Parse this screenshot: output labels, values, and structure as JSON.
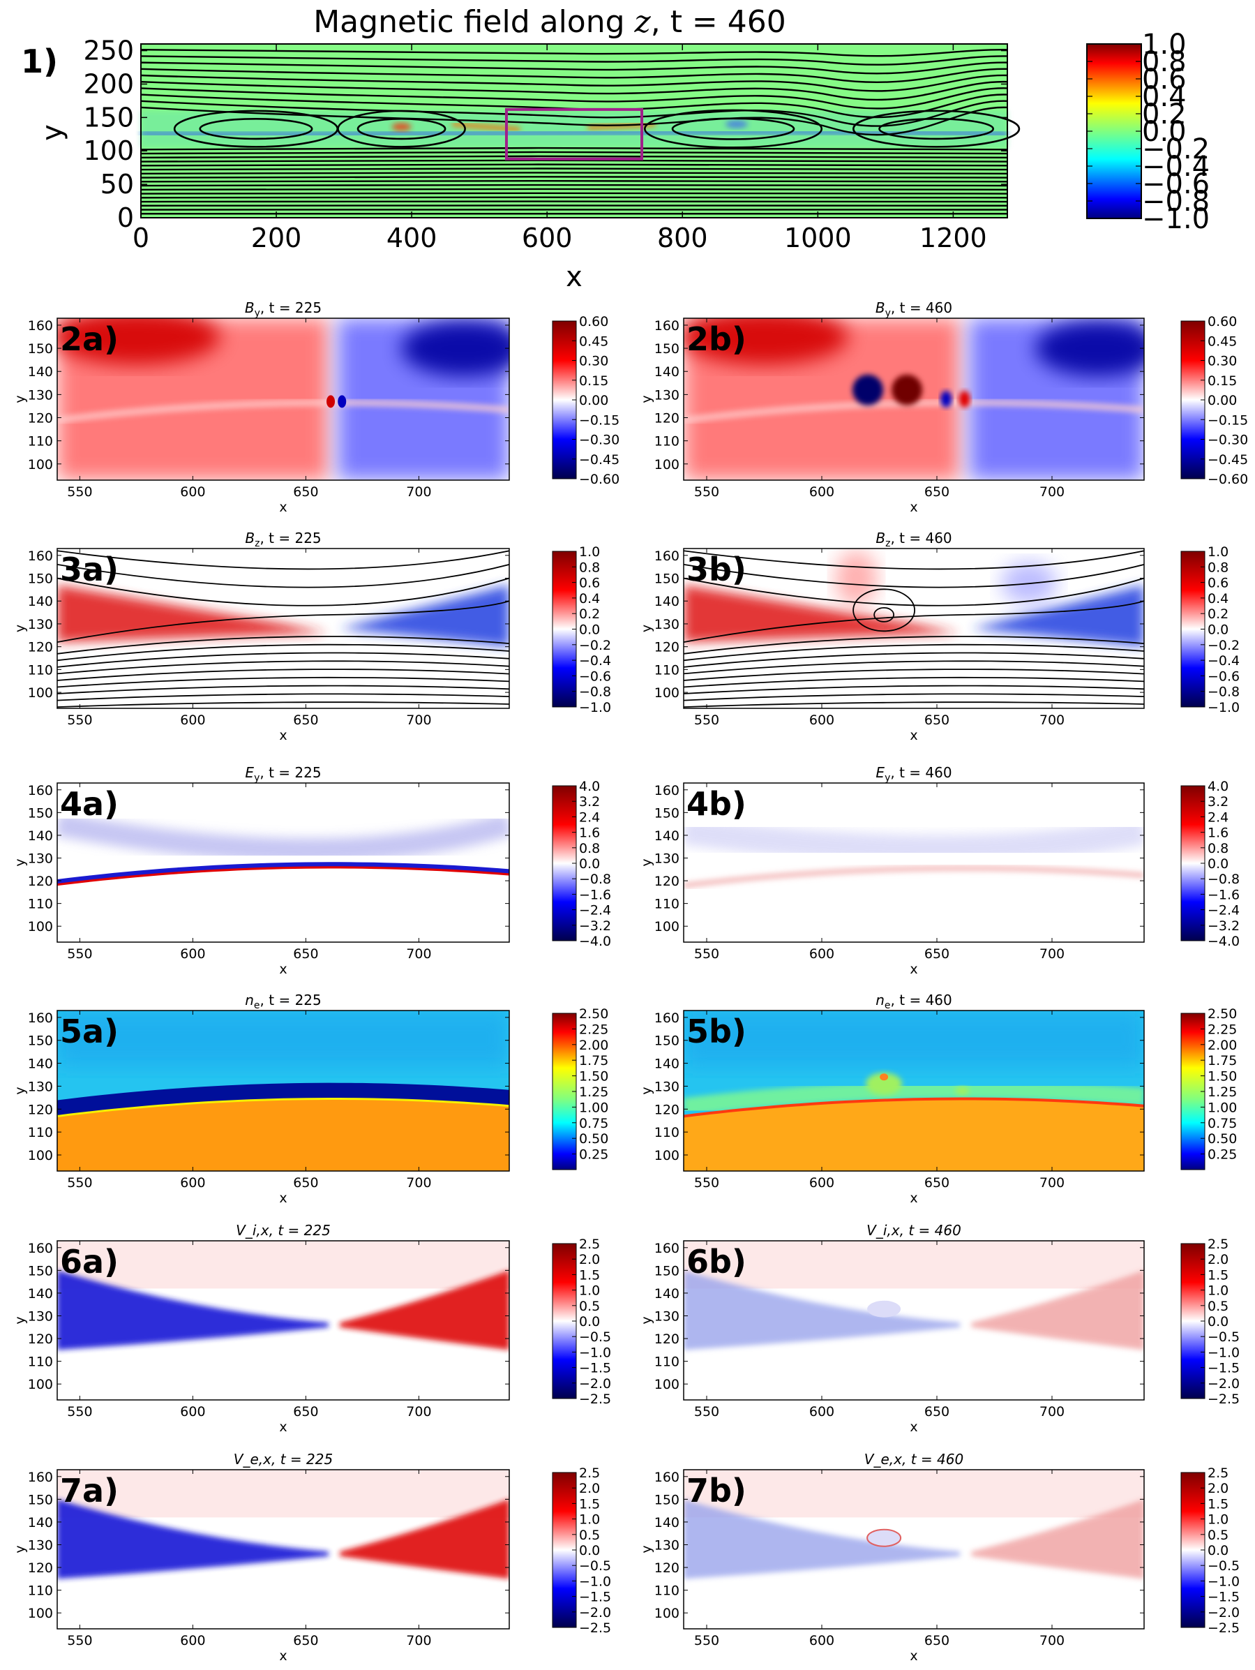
{
  "figure": {
    "panel1": {
      "id": "1)",
      "title": "Magnetic field along z, t = 460",
      "xlabel": "x",
      "ylabel": "y",
      "xlim": [
        0,
        1280
      ],
      "ylim": [
        0,
        260
      ],
      "xticks": [
        "0",
        "200",
        "400",
        "600",
        "800",
        "1000",
        "1200"
      ],
      "yticks": [
        "0",
        "50",
        "100",
        "150",
        "200",
        "250"
      ],
      "colorbar_ticks": [
        "1.0",
        "0.8",
        "0.6",
        "0.4",
        "0.2",
        "0.0",
        "−0.2",
        "−0.4",
        "−0.6",
        "−0.8",
        "−1.0"
      ],
      "highlight_box": {
        "x0": 540,
        "x1": 740,
        "y0": 88,
        "y1": 162
      },
      "island_centers_x": [
        170,
        385,
        875,
        1175
      ]
    },
    "common_axes": {
      "xlabel": "x",
      "ylabel": "y",
      "xlim": [
        540,
        740
      ],
      "ylim": [
        93,
        163
      ],
      "xticks": [
        "550",
        "600",
        "650",
        "700"
      ],
      "yticks": [
        "100",
        "110",
        "120",
        "130",
        "140",
        "150",
        "160"
      ]
    }
  },
  "chart_data": [
    {
      "type": "heatmap",
      "id": "1)",
      "title": "Magnetic field along z, t = 460",
      "colormap": "jet",
      "xlabel": "x",
      "ylabel": "y",
      "xlim": [
        0,
        1280
      ],
      "ylim": [
        0,
        260
      ],
      "clim": [
        -1.0,
        1.0
      ]
    },
    {
      "type": "heatmap",
      "id": "2a)",
      "title": "B_y, t = 225",
      "colormap": "seismic",
      "xlim": [
        540,
        740
      ],
      "ylim": [
        93,
        163
      ],
      "clim": [
        -0.6,
        0.6
      ],
      "colorbar_ticks": [
        "0.60",
        "0.45",
        "0.30",
        "0.15",
        "0.00",
        "−0.15",
        "−0.30",
        "−0.45",
        "−0.60"
      ]
    },
    {
      "type": "heatmap",
      "id": "2b)",
      "title": "B_y, t = 460",
      "colormap": "seismic",
      "xlim": [
        540,
        740
      ],
      "ylim": [
        93,
        163
      ],
      "clim": [
        -0.6,
        0.6
      ],
      "colorbar_ticks": [
        "0.60",
        "0.45",
        "0.30",
        "0.15",
        "0.00",
        "−0.15",
        "−0.30",
        "−0.45",
        "−0.60"
      ]
    },
    {
      "type": "heatmap",
      "id": "3a)",
      "title": "B_z, t = 225",
      "colormap": "seismic",
      "xlim": [
        540,
        740
      ],
      "ylim": [
        93,
        163
      ],
      "clim": [
        -1.0,
        1.0
      ],
      "colorbar_ticks": [
        "1.0",
        "0.8",
        "0.6",
        "0.4",
        "0.2",
        "0.0",
        "−0.2",
        "−0.4",
        "−0.6",
        "−0.8",
        "−1.0"
      ]
    },
    {
      "type": "heatmap",
      "id": "3b)",
      "title": "B_z, t = 460",
      "colormap": "seismic",
      "xlim": [
        540,
        740
      ],
      "ylim": [
        93,
        163
      ],
      "clim": [
        -1.0,
        1.0
      ],
      "colorbar_ticks": [
        "1.0",
        "0.8",
        "0.6",
        "0.4",
        "0.2",
        "0.0",
        "−0.2",
        "−0.4",
        "−0.6",
        "−0.8",
        "−1.0"
      ]
    },
    {
      "type": "heatmap",
      "id": "4a)",
      "title": "E_y, t = 225",
      "colormap": "seismic",
      "xlim": [
        540,
        740
      ],
      "ylim": [
        93,
        163
      ],
      "clim": [
        -4.0,
        4.0
      ],
      "colorbar_ticks": [
        "4.0",
        "3.2",
        "2.4",
        "1.6",
        "0.8",
        "0.0",
        "−0.8",
        "−1.6",
        "−2.4",
        "−3.2",
        "−4.0"
      ]
    },
    {
      "type": "heatmap",
      "id": "4b)",
      "title": "E_y, t = 460",
      "colormap": "seismic",
      "xlim": [
        540,
        740
      ],
      "ylim": [
        93,
        163
      ],
      "clim": [
        -4.0,
        4.0
      ],
      "colorbar_ticks": [
        "4.0",
        "3.2",
        "2.4",
        "1.6",
        "0.8",
        "0.0",
        "−0.8",
        "−1.6",
        "−2.4",
        "−3.2",
        "−4.0"
      ]
    },
    {
      "type": "heatmap",
      "id": "5a)",
      "title": "n_e, t = 225",
      "colormap": "jet",
      "xlim": [
        540,
        740
      ],
      "ylim": [
        93,
        163
      ],
      "clim": [
        0.0,
        2.5
      ],
      "colorbar_ticks": [
        "2.50",
        "2.25",
        "2.00",
        "1.75",
        "1.50",
        "1.25",
        "1.00",
        "0.75",
        "0.50",
        "0.25"
      ]
    },
    {
      "type": "heatmap",
      "id": "5b)",
      "title": "n_e, t = 460",
      "colormap": "jet",
      "xlim": [
        540,
        740
      ],
      "ylim": [
        93,
        163
      ],
      "clim": [
        0.0,
        2.5
      ],
      "colorbar_ticks": [
        "2.50",
        "2.25",
        "2.00",
        "1.75",
        "1.50",
        "1.25",
        "1.00",
        "0.75",
        "0.50",
        "0.25"
      ]
    },
    {
      "type": "heatmap",
      "id": "6a)",
      "title": "V_i,x, t = 225",
      "colormap": "seismic",
      "xlim": [
        540,
        740
      ],
      "ylim": [
        93,
        163
      ],
      "clim": [
        -2.5,
        2.5
      ],
      "colorbar_ticks": [
        "2.5",
        "2.0",
        "1.5",
        "1.0",
        "0.5",
        "0.0",
        "−0.5",
        "−1.0",
        "−1.5",
        "−2.0",
        "−2.5"
      ]
    },
    {
      "type": "heatmap",
      "id": "6b)",
      "title": "V_i,x, t = 460",
      "colormap": "seismic",
      "xlim": [
        540,
        740
      ],
      "ylim": [
        93,
        163
      ],
      "clim": [
        -2.5,
        2.5
      ],
      "colorbar_ticks": [
        "2.5",
        "2.0",
        "1.5",
        "1.0",
        "0.5",
        "0.0",
        "−0.5",
        "−1.0",
        "−1.5",
        "−2.0",
        "−2.5"
      ]
    },
    {
      "type": "heatmap",
      "id": "7a)",
      "title": "V_e,x, t = 225",
      "colormap": "seismic",
      "xlim": [
        540,
        740
      ],
      "ylim": [
        93,
        163
      ],
      "clim": [
        -2.5,
        2.5
      ],
      "colorbar_ticks": [
        "2.5",
        "2.0",
        "1.5",
        "1.0",
        "0.5",
        "0.0",
        "−0.5",
        "−1.0",
        "−1.5",
        "−2.0",
        "−2.5"
      ]
    },
    {
      "type": "heatmap",
      "id": "7b)",
      "title": "V_e,x, t = 460",
      "colormap": "seismic",
      "xlim": [
        540,
        740
      ],
      "ylim": [
        93,
        163
      ],
      "clim": [
        -2.5,
        2.5
      ],
      "colorbar_ticks": [
        "2.5",
        "2.0",
        "1.5",
        "1.0",
        "0.5",
        "0.0",
        "−0.5",
        "−1.0",
        "−1.5",
        "−2.0",
        "−2.5"
      ]
    }
  ]
}
